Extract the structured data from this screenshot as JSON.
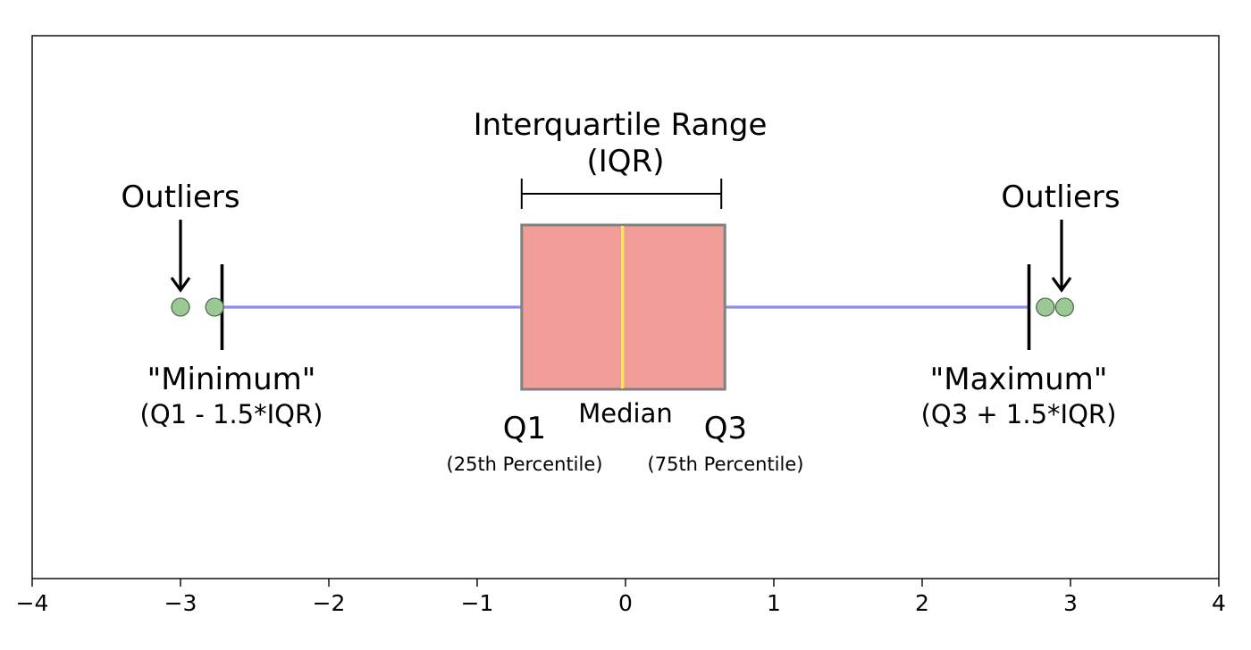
{
  "chart_data": {
    "type": "box",
    "xlim": [
      -4,
      4
    ],
    "x_ticks": [
      -4,
      -3,
      -2,
      -1,
      0,
      1,
      2,
      3,
      4
    ],
    "x_tick_labels": [
      "−4",
      "−3",
      "−2",
      "−1",
      "0",
      "1",
      "2",
      "3",
      "4"
    ],
    "box": {
      "q1": -0.7,
      "median": -0.02,
      "q3": 0.67,
      "whisker_low": -2.72,
      "whisker_high": 2.72,
      "outliers": [
        -3.0,
        -2.77,
        2.83,
        2.96
      ]
    },
    "annotations": {
      "iqr_title": "Interquartile Range",
      "iqr_abbr": "(IQR)",
      "outliers_left": "Outliers",
      "outliers_right": "Outliers",
      "minimum": "\"Minimum\"",
      "minimum_formula": "(Q1 - 1.5*IQR)",
      "maximum": "\"Maximum\"",
      "maximum_formula": "(Q3 + 1.5*IQR)",
      "median": "Median",
      "q1": "Q1",
      "q1_note": "(25th Percentile)",
      "q3": "Q3",
      "q3_note": "(75th Percentile)"
    },
    "colors": {
      "box_fill": "#f19d98",
      "box_edge": "#808080",
      "median_line": "#ffee44",
      "whisker": "#8c8cea",
      "outlier_fill": "#9bc894",
      "outlier_edge": "#4f6d4c",
      "cap": "#000000"
    }
  }
}
